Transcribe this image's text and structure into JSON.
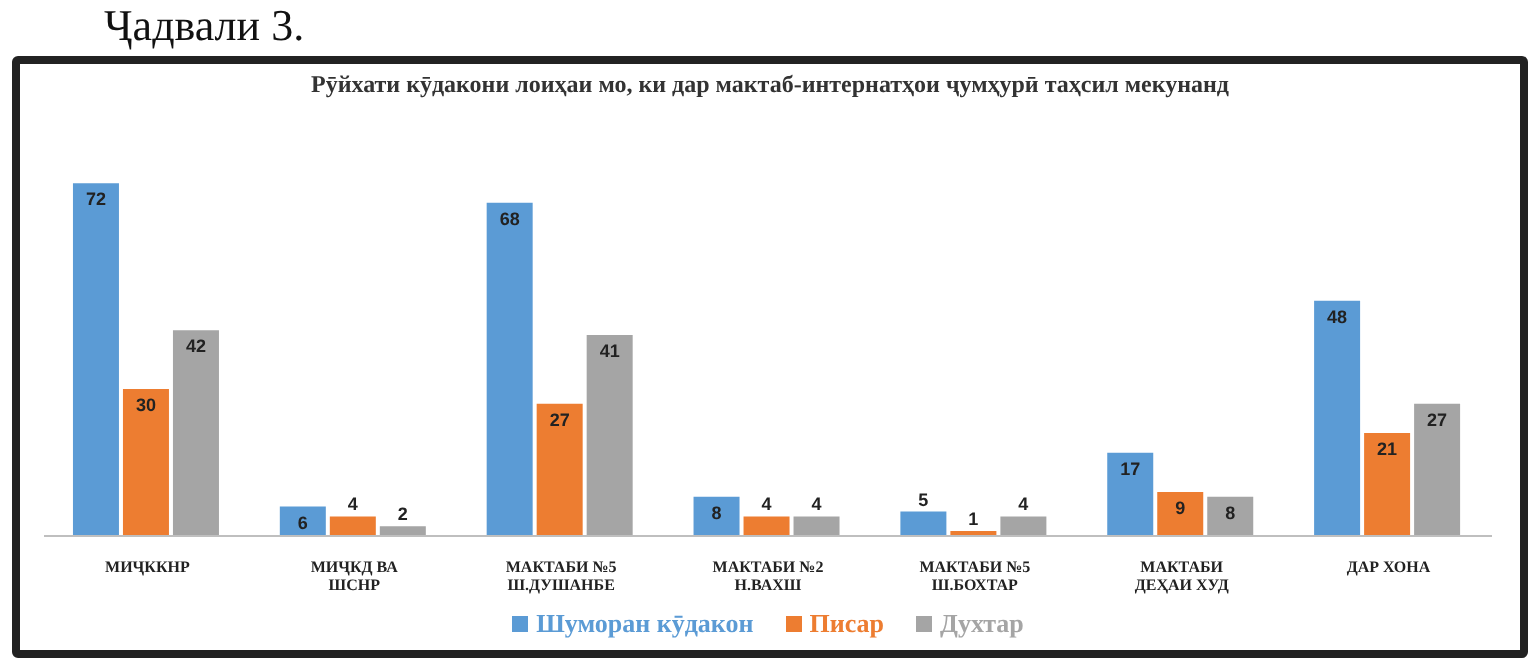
{
  "chart_data": {
    "type": "bar",
    "title": "Рӯйхати кӯдакони лоиҳаи мо, ки дар мактаб-интернатҳои ҷумҳурӣ таҳсил мекунанд",
    "annotations": [
      "Ҷадвали 3."
    ],
    "categories": [
      "МИҶККНР",
      "МИҶКД ВА ШСНР",
      "МАКТАБИ №5 Ш.ДУШАНБЕ",
      "МАКТАБИ №2 Н.ВАХШ",
      "МАКТАБИ №5 Ш.БОХТАР",
      "МАКТАБИ ДЕҲАИ ХУД",
      "ДАР ХОНА"
    ],
    "series": [
      {
        "name": "Шуморан кӯдакон",
        "color": "#5b9bd5",
        "values": [
          72,
          6,
          68,
          8,
          5,
          17,
          48
        ]
      },
      {
        "name": "Писар",
        "color": "#ed7d31",
        "values": [
          30,
          4,
          27,
          4,
          1,
          9,
          21
        ]
      },
      {
        "name": "Духтар",
        "color": "#a5a5a5",
        "values": [
          42,
          2,
          41,
          4,
          4,
          8,
          27
        ]
      }
    ],
    "tick_labels": "x",
    "data_labels": true,
    "legend": "bottom"
  }
}
